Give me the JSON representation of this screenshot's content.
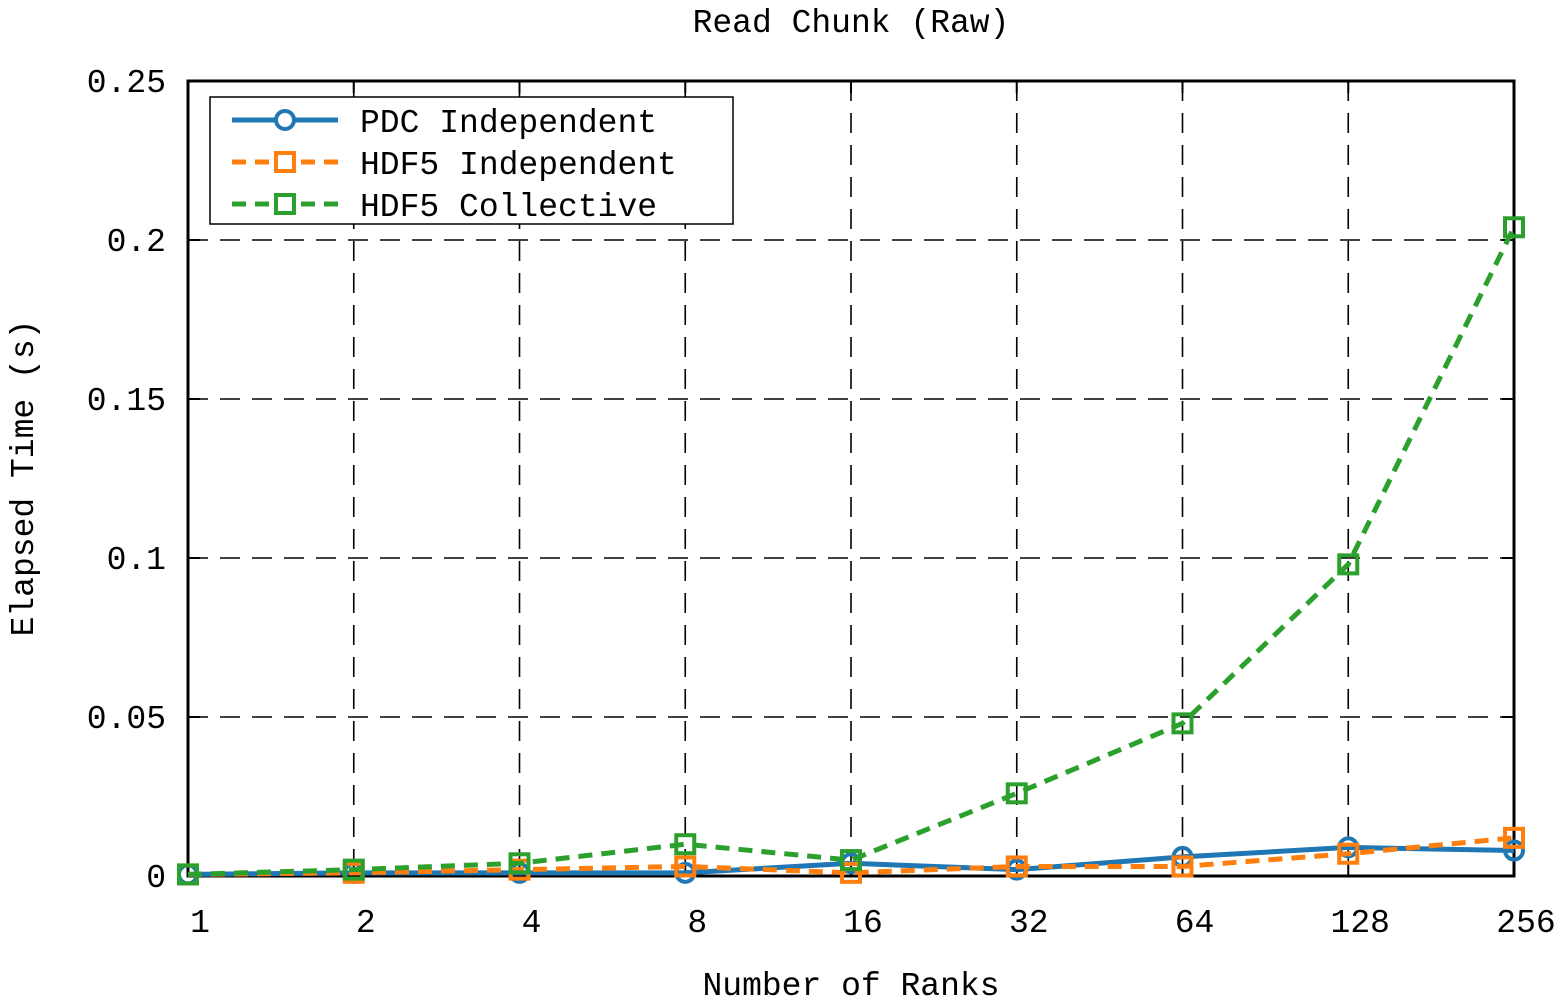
{
  "chart_data": {
    "type": "line",
    "title": "Read Chunk (Raw)",
    "xlabel": "Number of Ranks",
    "ylabel": "Elapsed Time (s)",
    "x_scale": "log2",
    "categories": [
      "1",
      "2",
      "4",
      "8",
      "16",
      "32",
      "64",
      "128",
      "256"
    ],
    "x": [
      1,
      2,
      4,
      8,
      16,
      32,
      64,
      128,
      256
    ],
    "ylim": [
      0,
      0.25
    ],
    "yticks": [
      "0",
      "0.05",
      "0.1",
      "0.15",
      "0.2",
      "0.25"
    ],
    "grid": true,
    "legend_position": "top-left",
    "series": [
      {
        "name": "PDC Independent",
        "color": "#1f77b4",
        "marker": "circle",
        "line_style": "solid",
        "values": [
          0.0005,
          0.001,
          0.001,
          0.001,
          0.004,
          0.002,
          0.006,
          0.009,
          0.008
        ]
      },
      {
        "name": "HDF5 Independent",
        "color": "#ff7f0e",
        "marker": "square",
        "line_style": "dashed",
        "values": [
          0.0005,
          0.001,
          0.002,
          0.003,
          0.001,
          0.003,
          0.003,
          0.007,
          0.012
        ]
      },
      {
        "name": "HDF5 Collective",
        "color": "#2ca02c",
        "marker": "square",
        "line_style": "dashed",
        "values": [
          0.0005,
          0.002,
          0.004,
          0.01,
          0.005,
          0.026,
          0.048,
          0.098,
          0.204
        ]
      }
    ]
  }
}
